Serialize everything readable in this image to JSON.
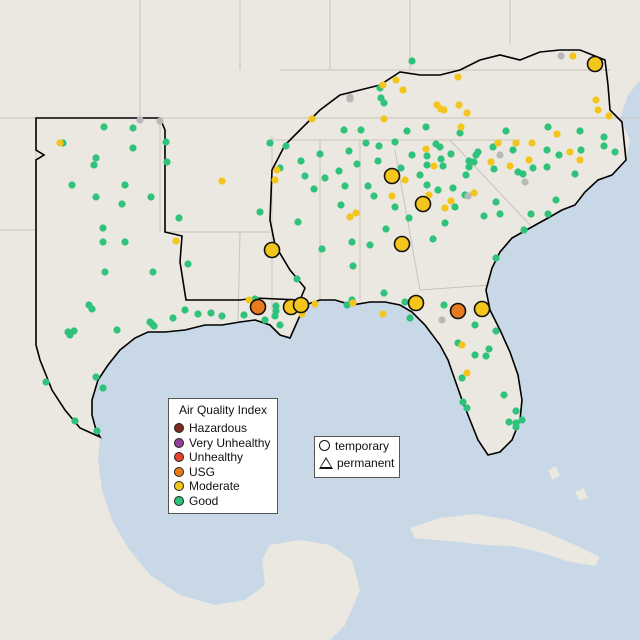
{
  "legend": {
    "title": "Air Quality Index",
    "categories": [
      {
        "label": "Hazardous",
        "color": "#7e2a1e"
      },
      {
        "label": "Very Unhealthy",
        "color": "#8f3f97"
      },
      {
        "label": "Unhealthy",
        "color": "#e5432b"
      },
      {
        "label": "USG",
        "color": "#e87a1e"
      },
      {
        "label": "Moderate",
        "color": "#f4c51a"
      },
      {
        "label": "Good",
        "color": "#2fc27a"
      }
    ]
  },
  "monitor_types": {
    "temporary": "temporary",
    "permanent": "permanent"
  },
  "colors": {
    "water": "#c9d8e6",
    "land": "#ebe7e1",
    "no_data": "#b8b8b8"
  }
}
